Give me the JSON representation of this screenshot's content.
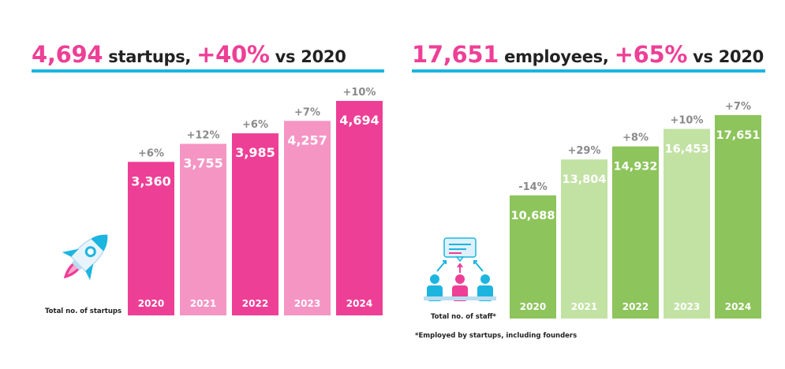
{
  "startups": {
    "headline": {
      "total": "4,694",
      "noun": "startups,",
      "growth": "+40%",
      "suffix": "vs 2020"
    },
    "caption": "Total no. of startups"
  },
  "employees": {
    "headline": {
      "total": "17,651",
      "noun": "employees,",
      "growth": "+65%",
      "suffix": "vs 2020"
    },
    "caption": "Total no. of staff*",
    "footnote": "*Employed by startups, including founders"
  },
  "icons": [
    "rocket-icon",
    "team-icon"
  ],
  "colors": {
    "pink_dark": "#ee3f96",
    "pink_light": "#f595c4",
    "green_dark": "#8dc45c",
    "green_light": "#c2e2a4",
    "accent_line": "#1cb5e0",
    "change_label": "#8a8a8a"
  },
  "chart_data": [
    {
      "type": "bar",
      "categories": [
        "2020",
        "2021",
        "2022",
        "2023",
        "2024"
      ],
      "values": [
        3360,
        3755,
        3985,
        4257,
        4694
      ],
      "value_labels": [
        "3,360",
        "3,755",
        "3,985",
        "4,257",
        "4,694"
      ],
      "change_labels": [
        "+6%",
        "+12%",
        "+6%",
        "+7%",
        "+10%"
      ],
      "bar_colors": [
        "#ee3f96",
        "#f595c4",
        "#ee3f96",
        "#f595c4",
        "#ee3f96"
      ],
      "title": "4,694 startups, +40% vs 2020",
      "xlabel": "",
      "ylabel": "Total no. of startups",
      "ylim": [
        0,
        5000
      ],
      "grid": false,
      "legend": "none"
    },
    {
      "type": "bar",
      "categories": [
        "2020",
        "2021",
        "2022",
        "2023",
        "2024"
      ],
      "values": [
        10688,
        13804,
        14932,
        16453,
        17651
      ],
      "value_labels": [
        "10,688",
        "13,804",
        "14,932",
        "16,453",
        "17,651"
      ],
      "change_labels": [
        "-14%",
        "+29%",
        "+8%",
        "+10%",
        "+7%"
      ],
      "bar_colors": [
        "#8dc45c",
        "#c2e2a4",
        "#8dc45c",
        "#c2e2a4",
        "#8dc45c"
      ],
      "title": "17,651 employees, +65% vs 2020",
      "xlabel": "",
      "ylabel": "Total no. of staff*",
      "ylim": [
        0,
        20000
      ],
      "grid": false,
      "legend": "none"
    }
  ]
}
